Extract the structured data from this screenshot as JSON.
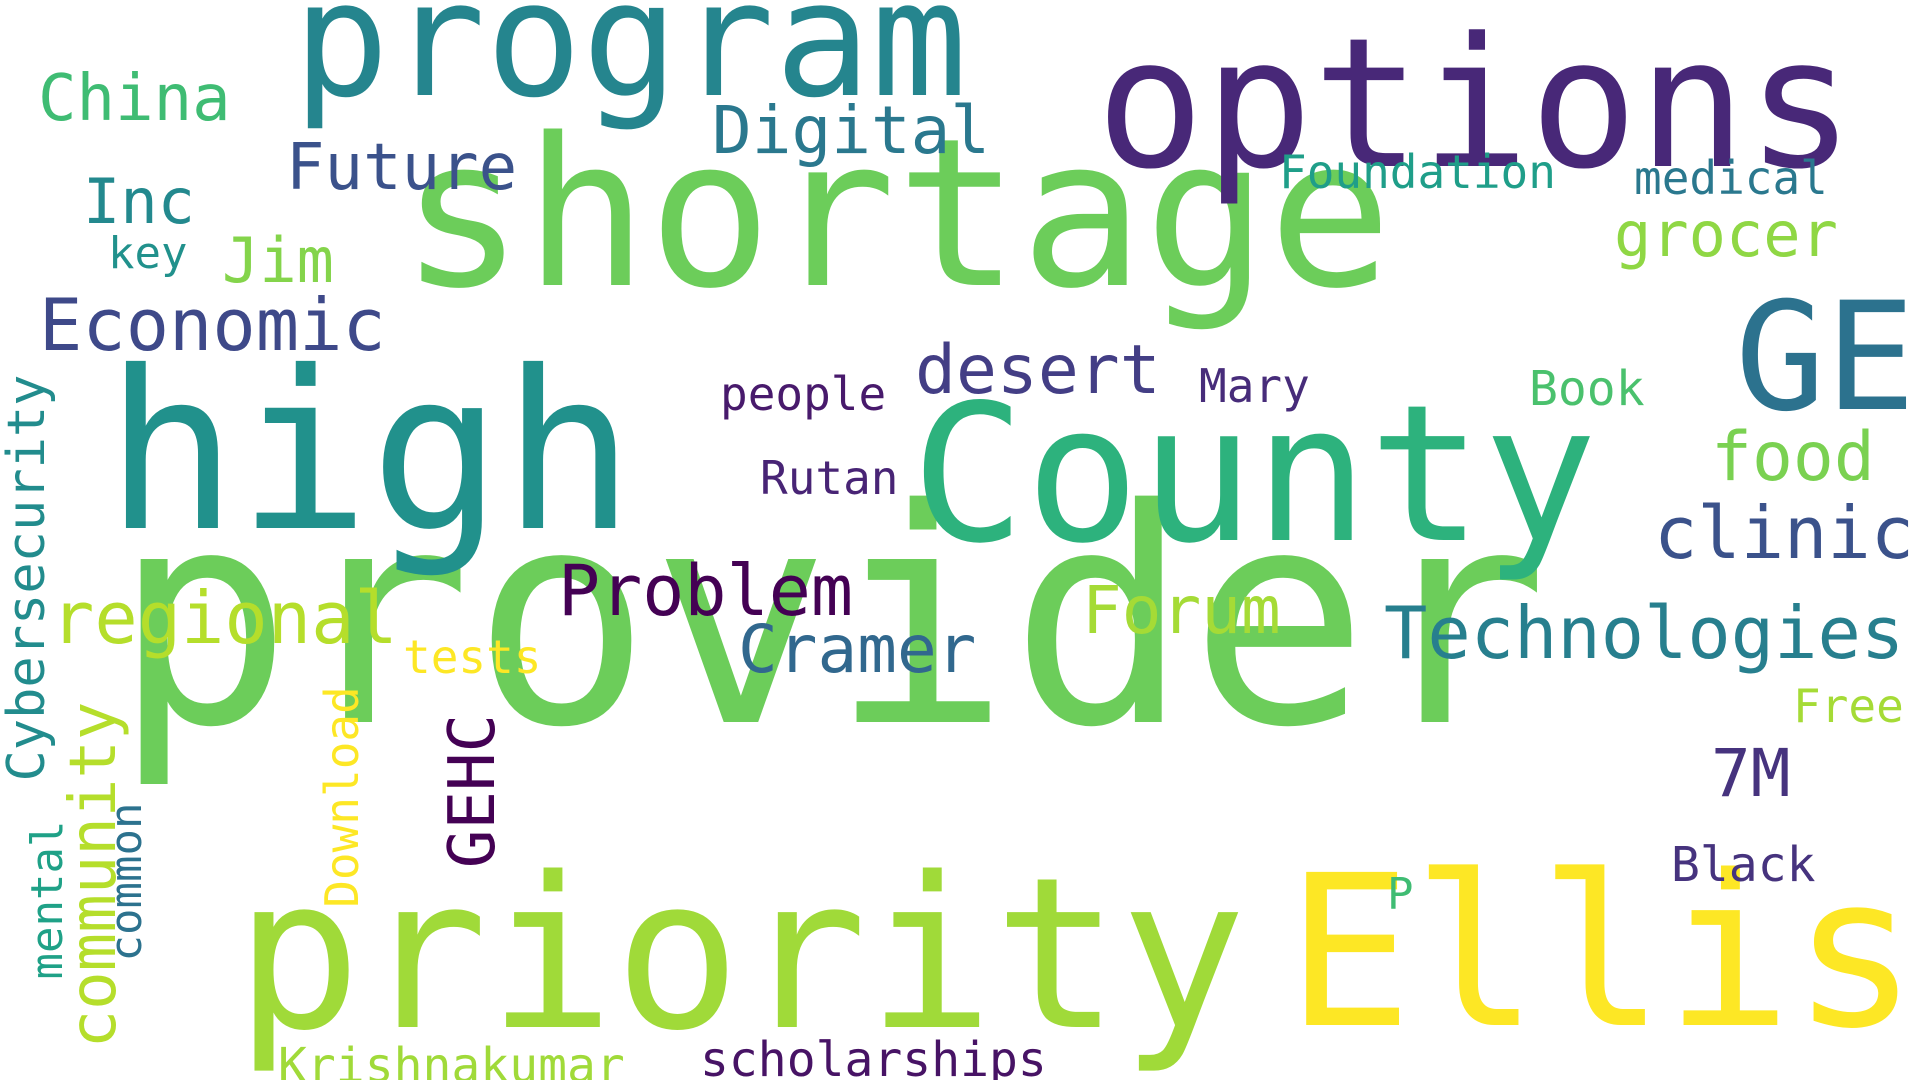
{
  "word_cloud": {
    "words": [
      {
        "text": "provider",
        "color": "#6ccd5a"
      },
      {
        "text": "shortage",
        "color": "#6ccd5a"
      },
      {
        "text": "high",
        "color": "#21918c"
      },
      {
        "text": "County",
        "color": "#2db27d"
      },
      {
        "text": "options",
        "color": "#482878"
      },
      {
        "text": "program",
        "color": "#25858e"
      },
      {
        "text": "priority",
        "color": "#a0da39"
      },
      {
        "text": "Ellis",
        "color": "#fde725"
      },
      {
        "text": "GE",
        "color": "#2c728e"
      },
      {
        "text": "Technologies",
        "color": "#277f8e"
      },
      {
        "text": "Economic",
        "color": "#3e4989"
      },
      {
        "text": "regional",
        "color": "#b5de2b"
      },
      {
        "text": "Problem",
        "color": "#440154"
      },
      {
        "text": "Cramer",
        "color": "#31688e"
      },
      {
        "text": "clinic",
        "color": "#3b528b"
      },
      {
        "text": "desert",
        "color": "#433e85"
      },
      {
        "text": "Digital",
        "color": "#2a788e"
      },
      {
        "text": "Future",
        "color": "#3b528b"
      },
      {
        "text": "food",
        "color": "#7ad151"
      },
      {
        "text": "grocer",
        "color": "#8fd744"
      },
      {
        "text": "Forum",
        "color": "#a5db36"
      },
      {
        "text": "Inc",
        "color": "#23898e"
      },
      {
        "text": "Jim",
        "color": "#84d44b"
      },
      {
        "text": "China",
        "color": "#3fbc73"
      },
      {
        "text": "7M",
        "color": "#46337e"
      },
      {
        "text": "GEHC",
        "color": "#440154"
      },
      {
        "text": "community",
        "color": "#b5de2b"
      },
      {
        "text": "scholarships",
        "color": "#471365"
      },
      {
        "text": "Krishnakumar",
        "color": "#a0da39"
      },
      {
        "text": "Foundation",
        "color": "#1f9e89"
      },
      {
        "text": "medical",
        "color": "#2a788e"
      },
      {
        "text": "Cybersecurity",
        "color": "#228c8d"
      },
      {
        "text": "Black",
        "color": "#46337e"
      },
      {
        "text": "Book",
        "color": "#4ac16d"
      },
      {
        "text": "Mary",
        "color": "#472c7a"
      },
      {
        "text": "people",
        "color": "#481a6c"
      },
      {
        "text": "Rutan",
        "color": "#482475"
      },
      {
        "text": "tests",
        "color": "#fde725"
      },
      {
        "text": "Download",
        "color": "#fde725"
      },
      {
        "text": "Free",
        "color": "#a5db36"
      },
      {
        "text": "key",
        "color": "#21918c"
      },
      {
        "text": "mental",
        "color": "#1fa187"
      },
      {
        "text": "common",
        "color": "#2c728e"
      },
      {
        "text": "P",
        "color": "#3fbc73"
      }
    ]
  }
}
